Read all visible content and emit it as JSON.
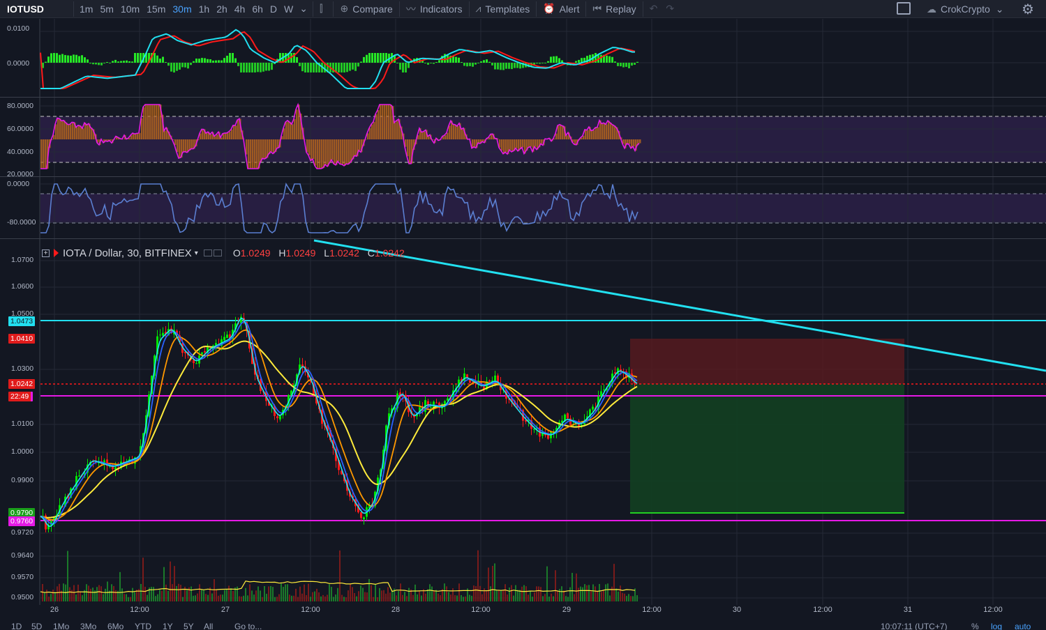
{
  "toolbar": {
    "symbol": "IOTUSD",
    "timeframes": [
      "1m",
      "5m",
      "10m",
      "15m",
      "30m",
      "1h",
      "2h",
      "4h",
      "6h",
      "D",
      "W"
    ],
    "active_timeframe": "30m",
    "compare_label": "Compare",
    "indicators_label": "Indicators",
    "templates_label": "Templates",
    "alert_label": "Alert",
    "replay_label": "Replay",
    "account_label": "CrokCrypto"
  },
  "macd_pane": {
    "ticks": [
      "0.0100",
      "0.0000"
    ]
  },
  "rsi_pane": {
    "ticks": [
      "80.0000",
      "60.0000",
      "40.0000",
      "20.0000"
    ]
  },
  "willr_pane": {
    "ticks": [
      "0.0000",
      "-80.0000"
    ]
  },
  "legend": {
    "title": "IOTA / Dollar, 30, BITFINEX",
    "o_key": "O",
    "o_val": "1.0249",
    "h_key": "H",
    "h_val": "1.0249",
    "l_key": "L",
    "l_val": "1.0242",
    "c_key": "C",
    "c_val": "1.0242"
  },
  "price_axis": {
    "ticks": [
      "1.0700",
      "1.0600",
      "1.0500",
      "1.0300",
      "1.0100",
      "1.0000",
      "0.9900",
      "0.9720",
      "0.9640",
      "0.9570",
      "0.9500"
    ],
    "tags": {
      "cyan_line": "1.0473",
      "stop": "1.0410",
      "last": "1.0242",
      "countdown": "22:49",
      "target": "0.9790",
      "support": "0.9760"
    }
  },
  "x_axis": [
    "26",
    "12:00",
    "27",
    "12:00",
    "28",
    "12:00",
    "29",
    "12:00",
    "30",
    "12:00",
    "31",
    "12:00"
  ],
  "bottom_bar": {
    "ranges": [
      "1D",
      "5D",
      "1Mo",
      "3Mo",
      "6Mo",
      "YTD",
      "1Y",
      "5Y",
      "All"
    ],
    "goto": "Go to...",
    "clock": "10:07:11 (UTC+7)",
    "percent": "%",
    "log": "log",
    "auto": "auto"
  },
  "colors": {
    "background": "#131722",
    "up": "#00e600",
    "down": "#ff1a1a",
    "cyan": "#22e0f0",
    "magenta": "#e619e6",
    "ema_fast": "#22e0f0",
    "ema_mid": "#2962ff",
    "ema_slow": "#ff9800",
    "ema_long": "#ffeb3b"
  }
}
